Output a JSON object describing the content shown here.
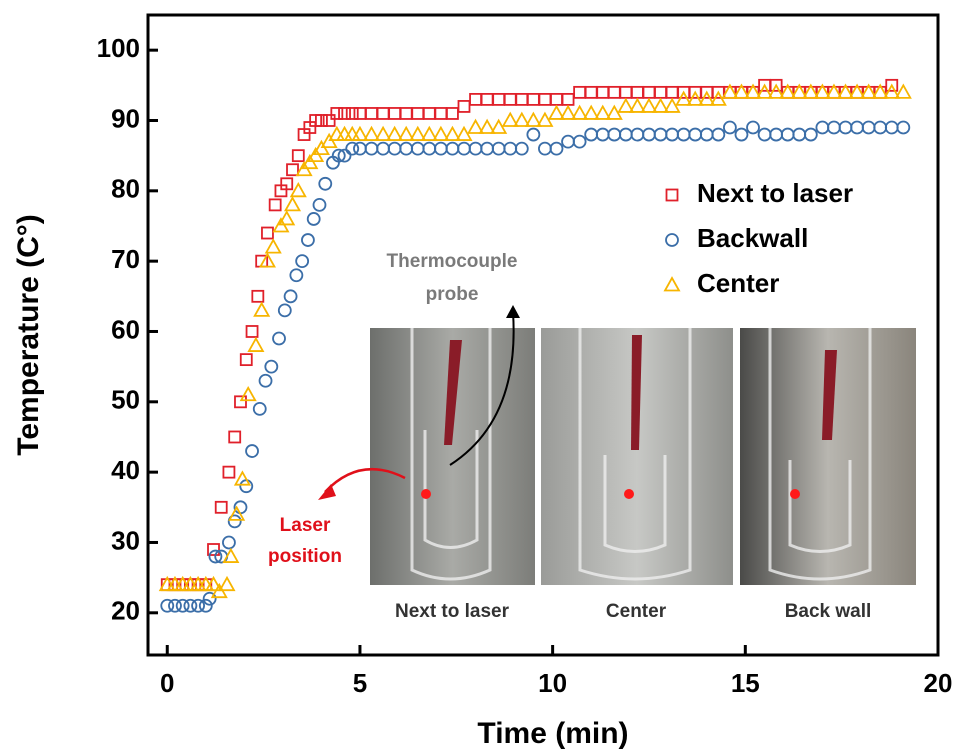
{
  "chart_data": {
    "type": "scatter",
    "xlabel": "Time (min)",
    "ylabel": "Temperature (C°)",
    "xlim": [
      -0.5,
      20
    ],
    "ylim": [
      14,
      105
    ],
    "xticks": [
      0,
      5,
      10,
      15,
      20
    ],
    "yticks": [
      20,
      30,
      40,
      50,
      60,
      70,
      80,
      90,
      100
    ],
    "legend": "upper right",
    "inset_labels": [
      "Next to laser",
      "Center",
      "Back wall"
    ],
    "annotations": [
      [
        "Thermocouple",
        "probe"
      ],
      [
        "Laser",
        "position"
      ]
    ],
    "series": [
      {
        "name": "Next to laser",
        "color": "#e0202a",
        "marker": "square",
        "x": [
          0,
          0.2,
          0.4,
          0.6,
          0.8,
          1.0,
          1.2,
          1.4,
          1.6,
          1.75,
          1.9,
          2.05,
          2.2,
          2.35,
          2.45,
          2.6,
          2.8,
          2.95,
          3.1,
          3.25,
          3.4,
          3.55,
          3.7,
          3.85,
          4.0,
          4.2,
          4.4,
          4.6,
          4.8,
          5.0,
          5.3,
          5.6,
          5.9,
          6.2,
          6.5,
          6.8,
          7.1,
          7.4,
          7.7,
          8.0,
          8.3,
          8.6,
          8.9,
          9.2,
          9.5,
          9.8,
          10.1,
          10.4,
          10.7,
          11.0,
          11.3,
          11.6,
          11.9,
          12.2,
          12.5,
          12.8,
          13.1,
          13.4,
          13.7,
          14.0,
          14.3,
          14.6,
          14.9,
          15.2,
          15.5,
          15.8,
          16.1,
          16.4,
          16.7,
          17.0,
          17.3,
          17.6,
          17.9,
          18.2,
          18.5,
          18.8
        ],
        "values": [
          24,
          24,
          24,
          24,
          24,
          24,
          29,
          35,
          40,
          45,
          50,
          56,
          60,
          65,
          70,
          74,
          78,
          80,
          81,
          83,
          85,
          88,
          89,
          90,
          90,
          90,
          91,
          91,
          91,
          91,
          91,
          91,
          91,
          91,
          91,
          91,
          91,
          91,
          92,
          93,
          93,
          93,
          93,
          93,
          93,
          93,
          93,
          93,
          94,
          94,
          94,
          94,
          94,
          94,
          94,
          94,
          94,
          94,
          94,
          94,
          94,
          94,
          94,
          94,
          95,
          95,
          94,
          94,
          94,
          94,
          94,
          94,
          94,
          94,
          94,
          95
        ]
      },
      {
        "name": "Backwall",
        "color": "#3b6ea8",
        "marker": "circle",
        "x": [
          0,
          0.2,
          0.4,
          0.6,
          0.8,
          1.0,
          1.1,
          1.25,
          1.4,
          1.6,
          1.75,
          1.9,
          2.05,
          2.2,
          2.4,
          2.55,
          2.7,
          2.9,
          3.05,
          3.2,
          3.35,
          3.5,
          3.65,
          3.8,
          3.95,
          4.1,
          4.3,
          4.45,
          4.6,
          4.8,
          5.0,
          5.3,
          5.6,
          5.9,
          6.2,
          6.5,
          6.8,
          7.1,
          7.4,
          7.7,
          8.0,
          8.3,
          8.6,
          8.9,
          9.2,
          9.5,
          9.8,
          10.1,
          10.4,
          10.7,
          11.0,
          11.3,
          11.6,
          11.9,
          12.2,
          12.5,
          12.8,
          13.1,
          13.4,
          13.7,
          14.0,
          14.3,
          14.6,
          14.9,
          15.2,
          15.5,
          15.8,
          16.1,
          16.4,
          16.7,
          17.0,
          17.3,
          17.6,
          17.9,
          18.2,
          18.5,
          18.8,
          19.1
        ],
        "values": [
          21,
          21,
          21,
          21,
          21,
          21,
          22,
          28,
          28,
          30,
          33,
          35,
          38,
          43,
          49,
          53,
          55,
          59,
          63,
          65,
          68,
          70,
          73,
          76,
          78,
          81,
          84,
          85,
          85,
          86,
          86,
          86,
          86,
          86,
          86,
          86,
          86,
          86,
          86,
          86,
          86,
          86,
          86,
          86,
          86,
          88,
          86,
          86,
          87,
          87,
          88,
          88,
          88,
          88,
          88,
          88,
          88,
          88,
          88,
          88,
          88,
          88,
          89,
          88,
          89,
          88,
          88,
          88,
          88,
          88,
          89,
          89,
          89,
          89,
          89,
          89,
          89,
          89
        ]
      },
      {
        "name": "Center",
        "color": "#f7b500",
        "marker": "triangle",
        "x": [
          0,
          0.2,
          0.4,
          0.6,
          0.8,
          1.0,
          1.2,
          1.35,
          1.55,
          1.65,
          1.8,
          1.95,
          2.1,
          2.3,
          2.45,
          2.6,
          2.75,
          2.95,
          3.1,
          3.25,
          3.4,
          3.55,
          3.7,
          3.85,
          4.0,
          4.2,
          4.4,
          4.6,
          4.8,
          5.0,
          5.3,
          5.6,
          5.9,
          6.2,
          6.5,
          6.8,
          7.1,
          7.4,
          7.7,
          8.0,
          8.3,
          8.6,
          8.9,
          9.2,
          9.5,
          9.8,
          10.1,
          10.4,
          10.7,
          11.0,
          11.3,
          11.6,
          11.9,
          12.2,
          12.5,
          12.8,
          13.1,
          13.4,
          13.7,
          14.0,
          14.3,
          14.6,
          14.9,
          15.2,
          15.5,
          15.8,
          16.1,
          16.4,
          16.7,
          17.0,
          17.3,
          17.6,
          17.9,
          18.2,
          18.5,
          18.8,
          19.1
        ],
        "values": [
          24,
          24,
          24,
          24,
          24,
          24,
          24,
          23,
          24,
          28,
          34,
          39,
          51,
          58,
          63,
          70,
          72,
          75,
          76,
          78,
          80,
          83,
          84,
          85,
          86,
          87,
          88,
          88,
          88,
          88,
          88,
          88,
          88,
          88,
          88,
          88,
          88,
          88,
          88,
          89,
          89,
          89,
          90,
          90,
          90,
          90,
          91,
          91,
          91,
          91,
          91,
          91,
          92,
          92,
          92,
          92,
          92,
          93,
          93,
          93,
          93,
          94,
          94,
          94,
          94,
          94,
          94,
          94,
          94,
          94,
          94,
          94,
          94,
          94,
          94,
          94,
          94
        ]
      }
    ]
  }
}
